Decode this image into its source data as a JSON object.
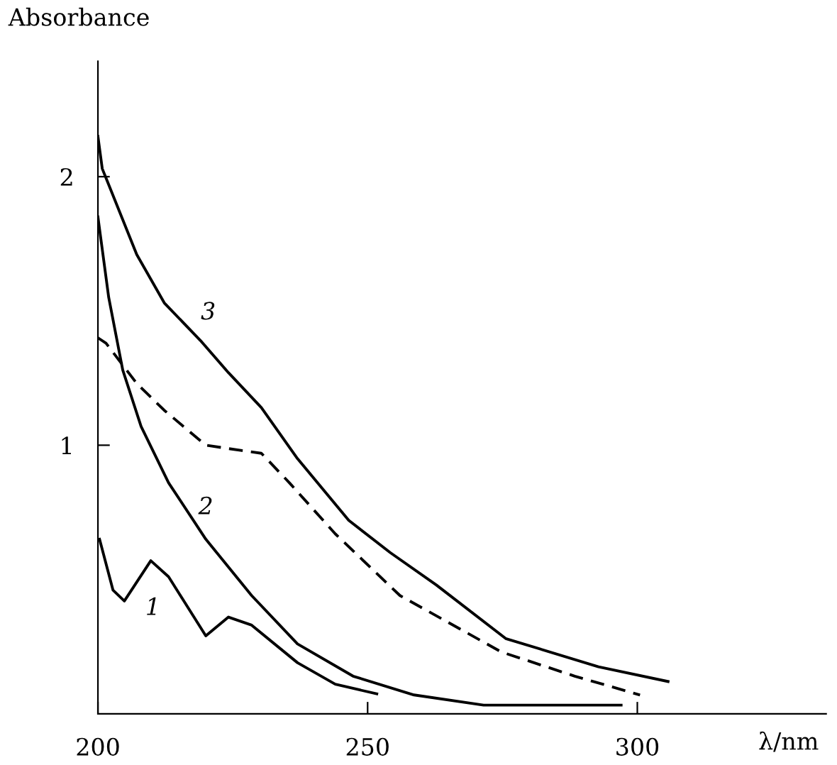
{
  "chart_data": {
    "type": "line",
    "xlabel": "λ/nm",
    "ylabel": "Absorbance",
    "xlim": [
      200,
      335
    ],
    "ylim": [
      0,
      2.43
    ],
    "xticks": [
      200,
      250,
      300
    ],
    "yticks": [
      1,
      2
    ],
    "grid": false,
    "legend": false,
    "marker": "none",
    "series": [
      {
        "name": "1",
        "color": "#000000",
        "line_style": "solid",
        "x": [
          200.3,
          202.8,
          204.9,
          209.8,
          213.1,
          220,
          224.2,
          228.5,
          237,
          244,
          251.7
        ],
        "values": [
          0.65,
          0.46,
          0.42,
          0.57,
          0.51,
          0.29,
          0.36,
          0.33,
          0.19,
          0.11,
          0.074
        ]
      },
      {
        "name": "2",
        "color": "#000000",
        "line_style": "solid",
        "x": [
          200,
          202,
          204.6,
          208,
          213.1,
          220,
          228.5,
          237,
          247.3,
          258.6,
          271.5,
          297
        ],
        "values": [
          1.85,
          1.55,
          1.28,
          1.07,
          0.86,
          0.65,
          0.44,
          0.26,
          0.14,
          0.07,
          0.032,
          0.032
        ]
      },
      {
        "name": "3",
        "color": "#000000",
        "line_style": "solid",
        "x": [
          200,
          200.8,
          207.2,
          212.3,
          219,
          224.2,
          230.3,
          237,
          246.5,
          254.2,
          262.7,
          275.6,
          292.8,
          305.7
        ],
        "values": [
          2.15,
          2.03,
          1.71,
          1.53,
          1.39,
          1.27,
          1.14,
          0.95,
          0.72,
          0.6,
          0.48,
          0.28,
          0.175,
          0.12
        ]
      },
      {
        "color": "#000000",
        "line_style": "dashed",
        "x": [
          200,
          201.5,
          207.2,
          212.3,
          220,
          226.7,
          230.3,
          235.5,
          244,
          256,
          274.8,
          288.4,
          300.5
        ],
        "values": [
          1.4,
          1.38,
          1.23,
          1.13,
          1.0,
          0.98,
          0.97,
          0.86,
          0.67,
          0.44,
          0.23,
          0.14,
          0.07
        ]
      }
    ]
  }
}
